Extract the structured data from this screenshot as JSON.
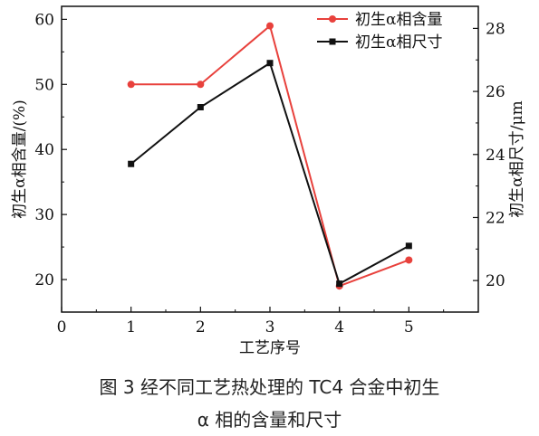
{
  "chart_data": {
    "type": "line",
    "x": [
      1,
      2,
      3,
      4,
      5
    ],
    "xlabel": "工艺序号",
    "xticks": [
      "0",
      "1",
      "2",
      "3",
      "4",
      "5"
    ],
    "xlim": [
      0,
      6
    ],
    "ylabel_left": "初生α相含量/(%)",
    "ylim_left": [
      15,
      62
    ],
    "yticks_left": [
      20,
      30,
      40,
      50,
      60
    ],
    "ylabel_right": "初生α相尺寸/μm",
    "ylim_right": [
      19,
      28.7
    ],
    "yticks_right": [
      20,
      22,
      24,
      26,
      28
    ],
    "grid": false,
    "legend_position": "top-right",
    "series": [
      {
        "name": "初生α相含量",
        "axis": "left",
        "color": "#e8413c",
        "marker": "circle",
        "values": [
          50,
          50,
          59,
          19,
          23
        ]
      },
      {
        "name": "初生α相尺寸",
        "axis": "right",
        "color": "#111111",
        "marker": "square",
        "values": [
          23.7,
          25.5,
          26.9,
          19.9,
          21.1
        ]
      }
    ]
  },
  "caption": {
    "line1": "图 3   经不同工艺热处理的 TC4 合金中初生",
    "line2": "α 相的含量和尺寸"
  }
}
